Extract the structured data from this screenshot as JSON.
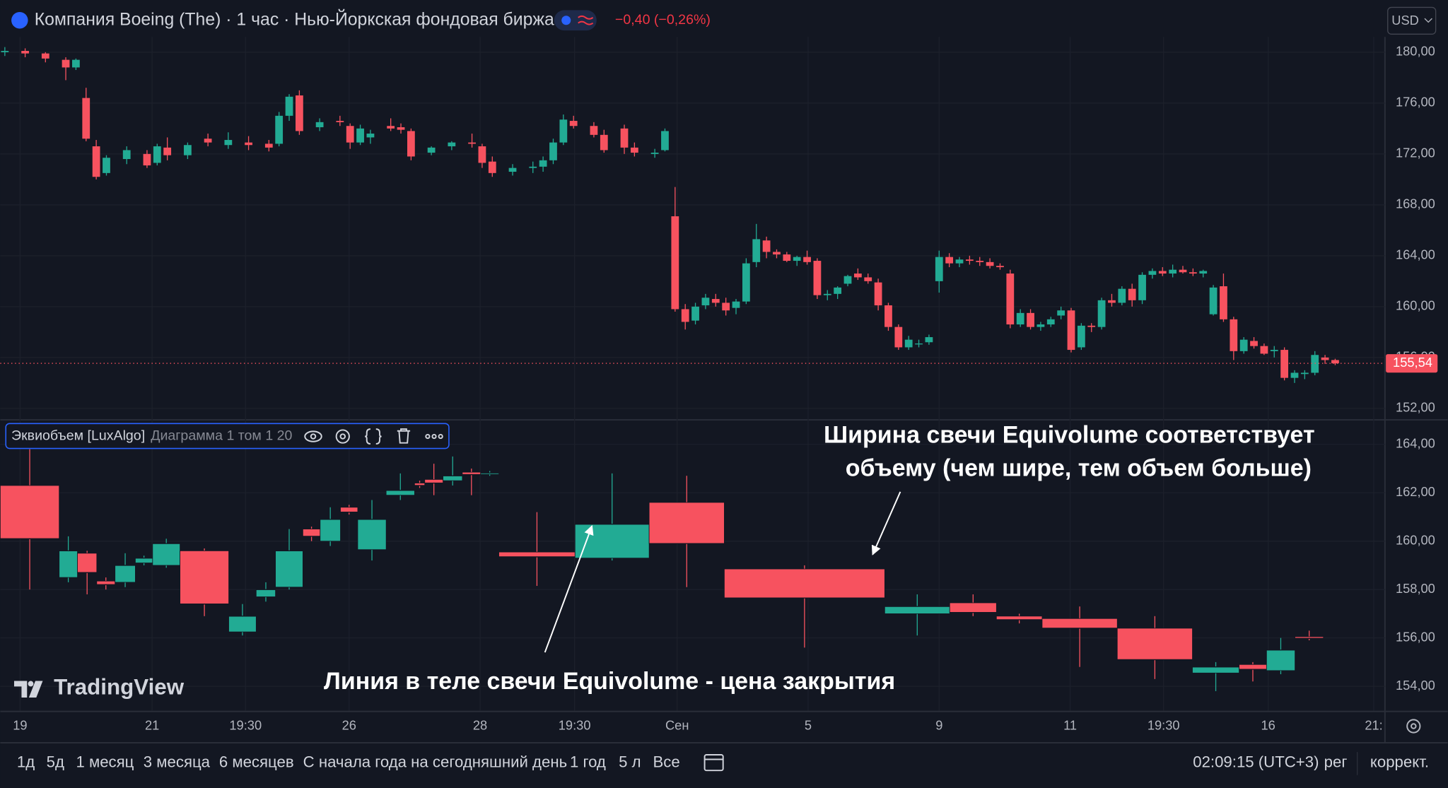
{
  "chart_data": [
    {
      "type": "candlestick",
      "title": "Компания Boeing (The) · 1 час · Нью-Йоркская фондовая биржа",
      "change_label": "−0,40 (−0,26%)",
      "currency": "USD",
      "up_color": "#22ab94",
      "down_color": "#f7525f",
      "grid": true,
      "xlim": [
        -0.45,
        135.9
      ],
      "xticks": [
        {
          "value": 1.5,
          "label": "19"
        },
        {
          "value": 14.5,
          "label": "21"
        },
        {
          "value": 23.7,
          "label": "19:30"
        },
        {
          "value": 33.9,
          "label": "26"
        },
        {
          "value": 46.8,
          "label": "28"
        },
        {
          "value": 56.1,
          "label": "19:30"
        },
        {
          "value": 66.2,
          "label": "Сен"
        },
        {
          "value": 79.1,
          "label": "5"
        },
        {
          "value": 92,
          "label": "9"
        },
        {
          "value": 104.9,
          "label": "11"
        },
        {
          "value": 114.1,
          "label": "19:30"
        },
        {
          "value": 124.4,
          "label": "16"
        },
        {
          "value": 134.8,
          "label": "21:"
        }
      ],
      "ylim": [
        151.1,
        181.2
      ],
      "yticks": [
        {
          "value": 152,
          "label": "152,00"
        },
        {
          "value": 156,
          "label": "156,00"
        },
        {
          "value": 160,
          "label": "160,00"
        },
        {
          "value": 164,
          "label": "164,00"
        },
        {
          "value": 168,
          "label": "168,00"
        },
        {
          "value": 172,
          "label": "172,00"
        },
        {
          "value": 176,
          "label": "176,00"
        },
        {
          "value": 180,
          "label": "180,00"
        }
      ],
      "last_price": 155.54,
      "last_price_label": "155,54",
      "x": [
        0,
        2,
        4,
        6,
        7,
        8,
        9,
        10,
        12,
        14,
        15,
        16,
        18,
        20,
        22,
        24,
        26,
        27,
        28,
        29,
        31,
        33,
        34,
        35,
        36,
        38,
        39,
        40,
        42,
        44,
        46,
        47,
        48,
        50,
        52,
        53,
        54,
        55,
        56,
        58,
        59,
        61,
        62,
        64,
        65,
        66,
        67,
        68,
        69,
        70,
        71,
        72,
        73,
        74,
        75,
        76,
        77,
        78,
        79,
        80,
        81,
        82,
        83,
        84,
        85,
        86,
        87,
        88,
        89,
        90,
        91,
        92,
        93,
        94,
        95,
        96,
        97,
        98,
        99,
        100,
        101,
        102,
        103,
        104,
        105,
        106,
        107,
        108,
        109,
        110,
        111,
        112,
        113,
        114,
        115,
        116,
        117,
        118,
        119,
        120,
        121,
        122,
        123,
        124,
        125,
        126,
        127,
        128,
        129,
        130,
        131
      ],
      "open": [
        180.0,
        180.1,
        179.9,
        179.4,
        178.8,
        176.4,
        172.6,
        170.5,
        171.6,
        172.0,
        171.3,
        172.5,
        171.9,
        173.2,
        172.7,
        172.9,
        172.8,
        172.8,
        175.0,
        176.6,
        174.1,
        174.6,
        174.2,
        172.9,
        173.3,
        174.2,
        174.1,
        173.8,
        172.1,
        172.6,
        172.9,
        172.6,
        171.4,
        170.6,
        170.9,
        171.0,
        171.5,
        172.9,
        174.6,
        174.2,
        173.5,
        174.0,
        172.5,
        172.0,
        172.3,
        167.1,
        159.8,
        158.9,
        160.1,
        160.6,
        160.3,
        159.9,
        160.4,
        163.5,
        165.2,
        164.3,
        164.1,
        163.6,
        163.9,
        163.6,
        160.9,
        161.0,
        161.8,
        162.6,
        162.3,
        161.9,
        160.1,
        158.4,
        156.8,
        157.1,
        157.2,
        162.0,
        163.9,
        163.4,
        163.7,
        163.6,
        163.5,
        163.2,
        162.6,
        158.6,
        159.5,
        158.4,
        158.6,
        159.3,
        159.7,
        156.8,
        158.5,
        158.4,
        160.5,
        160.3,
        161.4,
        160.5,
        162.5,
        162.8,
        162.6,
        162.9,
        162.7,
        162.6,
        159.4,
        161.6,
        159.0,
        156.5,
        157.3,
        156.9,
        156.5,
        156.6,
        154.4,
        154.7,
        154.8,
        156.0,
        155.8
      ],
      "high": [
        180.4,
        180.3,
        180.0,
        179.6,
        179.5,
        177.2,
        173.1,
        171.9,
        172.6,
        172.3,
        172.8,
        173.3,
        172.9,
        173.6,
        173.7,
        173.4,
        173.1,
        175.3,
        176.7,
        177.0,
        174.8,
        175.0,
        174.4,
        174.3,
        173.9,
        174.8,
        174.4,
        174.0,
        172.6,
        173.0,
        173.6,
        172.8,
        171.8,
        171.2,
        171.4,
        171.8,
        173.2,
        175.1,
        175.0,
        174.5,
        173.9,
        174.3,
        172.9,
        172.4,
        174.0,
        169.4,
        160.2,
        160.3,
        161.0,
        161.0,
        160.7,
        160.6,
        163.8,
        166.5,
        165.5,
        164.5,
        164.3,
        164.0,
        164.4,
        163.8,
        161.3,
        161.6,
        162.5,
        163.0,
        162.6,
        162.2,
        160.3,
        158.6,
        157.7,
        157.4,
        157.8,
        164.4,
        164.2,
        163.9,
        164.0,
        163.9,
        163.8,
        163.4,
        162.9,
        159.8,
        159.8,
        158.8,
        159.2,
        160.0,
        159.9,
        158.7,
        158.7,
        160.7,
        161.0,
        161.6,
        161.8,
        162.7,
        163.0,
        163.1,
        163.3,
        163.2,
        163.0,
        162.9,
        161.7,
        162.6,
        159.2,
        157.6,
        157.6,
        157.1,
        156.9,
        156.8,
        155.0,
        155.0,
        156.5,
        156.2,
        155.9
      ],
      "low": [
        179.7,
        179.6,
        179.2,
        177.8,
        178.6,
        173.0,
        170.0,
        170.3,
        171.2,
        170.9,
        171.1,
        171.5,
        171.6,
        172.6,
        172.4,
        172.3,
        172.2,
        172.6,
        174.6,
        173.5,
        173.8,
        174.2,
        172.4,
        172.7,
        172.8,
        173.8,
        173.6,
        171.5,
        171.9,
        172.3,
        172.5,
        170.9,
        170.2,
        170.3,
        170.5,
        170.6,
        171.2,
        172.7,
        174.0,
        173.3,
        172.1,
        172.0,
        171.8,
        171.7,
        172.2,
        159.6,
        158.2,
        158.6,
        159.8,
        160.0,
        159.3,
        159.4,
        160.2,
        163.1,
        163.8,
        163.8,
        163.5,
        163.2,
        163.3,
        160.6,
        160.5,
        160.6,
        161.6,
        162.1,
        161.8,
        159.7,
        158.1,
        156.6,
        156.6,
        156.8,
        157.0,
        161.1,
        163.1,
        163.1,
        163.3,
        163.2,
        163.0,
        162.9,
        158.3,
        158.4,
        158.2,
        158.1,
        158.4,
        159.0,
        156.4,
        156.6,
        158.0,
        158.2,
        160.0,
        160.1,
        160.0,
        160.2,
        162.2,
        162.4,
        162.3,
        162.6,
        162.4,
        162.3,
        159.3,
        158.8,
        155.8,
        156.3,
        156.7,
        156.2,
        156.0,
        154.2,
        154.0,
        154.3,
        154.6,
        155.5,
        155.4
      ],
      "close": [
        180.1,
        179.9,
        179.5,
        178.8,
        179.4,
        173.2,
        170.2,
        171.7,
        172.3,
        171.1,
        172.6,
        171.9,
        172.7,
        172.9,
        173.1,
        172.7,
        172.5,
        175.0,
        176.5,
        173.8,
        174.5,
        174.5,
        172.9,
        174.0,
        173.6,
        174.0,
        173.9,
        171.8,
        172.5,
        172.9,
        172.8,
        171.3,
        170.5,
        170.9,
        171.0,
        171.5,
        172.9,
        174.7,
        174.2,
        173.5,
        172.3,
        172.5,
        172.1,
        172.1,
        173.8,
        159.8,
        158.8,
        160.0,
        160.7,
        160.3,
        159.7,
        160.4,
        163.4,
        165.3,
        164.3,
        164.1,
        163.6,
        163.9,
        163.5,
        160.9,
        161.0,
        161.5,
        162.4,
        162.3,
        162.0,
        160.1,
        158.4,
        156.8,
        157.4,
        157.1,
        157.6,
        163.9,
        163.4,
        163.7,
        163.6,
        163.5,
        163.2,
        163.1,
        158.6,
        159.5,
        158.4,
        158.6,
        159.0,
        159.7,
        156.6,
        158.5,
        158.4,
        160.5,
        160.3,
        161.4,
        160.5,
        162.5,
        162.8,
        162.6,
        162.9,
        162.7,
        162.6,
        162.8,
        161.5,
        159.0,
        156.5,
        157.4,
        156.9,
        156.3,
        156.6,
        154.4,
        154.8,
        154.8,
        156.2,
        155.8,
        155.54
      ]
    },
    {
      "type": "equivolume",
      "title": "Эквиобъем [LuxAlgo]",
      "subtitle": "Диаграмма 1 том 1 20",
      "up_color": "#22ab94",
      "down_color": "#f7525f",
      "grid": true,
      "xlim": [
        0,
        136.36
      ],
      "ylim": [
        153.0,
        164.9
      ],
      "yticks": [
        {
          "value": 154,
          "label": "154,00"
        },
        {
          "value": 156,
          "label": "156,00"
        },
        {
          "value": 158,
          "label": "158,00"
        },
        {
          "value": 160,
          "label": "160,00"
        },
        {
          "value": 162,
          "label": "162,00"
        },
        {
          "value": 164,
          "label": "164,00"
        }
      ],
      "annotations": [
        "Ширина свечи Equivolume соответствует",
        "объему (чем шире, тем объем больше)",
        "Линия в теле свечи Equivolume - цена закрытия"
      ],
      "x": [
        0,
        5.8,
        7.6,
        9.5,
        11.3,
        13.3,
        15.0,
        17.7,
        22.5,
        25.2,
        27.1,
        29.8,
        31.5,
        33.5,
        35.2,
        38.0,
        40.8,
        41.8,
        43.6,
        45.5,
        47.3,
        49.1,
        56.6,
        63.9,
        71.3,
        87.1,
        93.5,
        98.1,
        102.6,
        110.0,
        117.4,
        122.0,
        124.7,
        127.5
      ],
      "width": [
        5.8,
        1.8,
        1.9,
        1.8,
        2.0,
        1.7,
        2.7,
        4.8,
        2.7,
        1.9,
        2.7,
        1.7,
        2.0,
        1.7,
        2.8,
        2.8,
        1.0,
        1.8,
        1.9,
        1.8,
        1.8,
        7.5,
        7.3,
        7.4,
        15.8,
        6.4,
        4.6,
        4.5,
        7.4,
        7.4,
        4.6,
        2.7,
        2.8,
        2.8
      ],
      "open": [
        162.3,
        158.5,
        159.5,
        158.35,
        158.3,
        159.1,
        159.0,
        159.6,
        156.25,
        157.7,
        158.1,
        160.5,
        160.0,
        161.4,
        159.65,
        161.9,
        162.4,
        162.55,
        162.5,
        162.85,
        162.78,
        159.55,
        159.3,
        161.6,
        158.85,
        157.0,
        157.45,
        156.9,
        156.8,
        156.4,
        154.55,
        154.9,
        154.65,
        156.05
      ],
      "high": [
        163.8,
        160.2,
        159.6,
        158.5,
        159.5,
        159.4,
        160.1,
        159.7,
        157.4,
        158.3,
        160.5,
        160.6,
        161.4,
        161.5,
        161.7,
        162.8,
        162.5,
        163.2,
        163.5,
        163.0,
        162.9,
        161.2,
        162.8,
        162.7,
        159.0,
        157.8,
        157.8,
        157.0,
        157.3,
        156.9,
        155.0,
        155.0,
        156.0,
        156.3
      ],
      "low": [
        158.0,
        158.3,
        157.8,
        158.0,
        158.1,
        159.0,
        158.9,
        156.9,
        156.1,
        157.5,
        158.0,
        160.0,
        159.8,
        161.1,
        159.2,
        161.7,
        162.2,
        161.9,
        162.3,
        161.9,
        162.7,
        158.15,
        159.2,
        158.1,
        155.6,
        156.1,
        156.9,
        156.6,
        154.8,
        154.3,
        153.8,
        154.2,
        154.5,
        155.9
      ],
      "close": [
        160.1,
        159.6,
        158.7,
        158.2,
        159.0,
        159.3,
        159.9,
        157.4,
        156.9,
        158.0,
        159.6,
        160.2,
        160.9,
        161.2,
        160.9,
        162.1,
        162.3,
        162.4,
        162.7,
        162.75,
        162.82,
        159.35,
        160.7,
        159.9,
        157.65,
        157.3,
        157.05,
        156.75,
        156.4,
        155.1,
        154.8,
        154.7,
        155.5,
        155.98
      ]
    }
  ],
  "branding": "TradingView",
  "toolbar": {
    "ranges": [
      "1д",
      "5д",
      "1 месяц",
      "3 месяца",
      "6 месяцев",
      "С начала года на сегодняшний день",
      "1 год",
      "5 л",
      "Все"
    ],
    "time": "02:09:15 (UTC+3)",
    "session": "рег",
    "adjust": "коррект."
  }
}
